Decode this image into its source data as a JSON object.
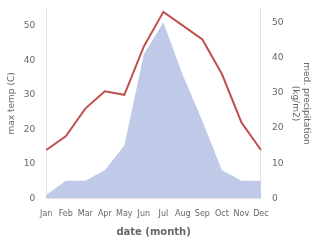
{
  "chart_data": {
    "type": "line",
    "categories": [
      "Jan",
      "Feb",
      "Mar",
      "Apr",
      "May",
      "Jun",
      "Jul",
      "Aug",
      "Sep",
      "Oct",
      "Nov",
      "Dec"
    ],
    "series": [
      {
        "type": "area",
        "color": "#bfc9e8",
        "axis": "y2",
        "values": [
          1,
          5,
          5,
          8,
          15,
          41,
          50,
          35,
          22,
          8,
          5,
          5
        ]
      },
      {
        "type": "line",
        "color": "#c0504d",
        "values": [
          14,
          18,
          26,
          31,
          30,
          44,
          54,
          50,
          46,
          36,
          22,
          14
        ]
      }
    ],
    "xlabel": "date (month)",
    "ylabel": "max temp (C)",
    "y2label": "med. precipitation\n(kg/m2)",
    "ylim": [
      0,
      55
    ],
    "yticks": [
      0,
      10,
      20,
      30,
      40,
      50
    ],
    "y2lim": [
      0,
      54
    ],
    "y2ticks": [
      0,
      10,
      20,
      30,
      40,
      50
    ],
    "grid": false
  }
}
